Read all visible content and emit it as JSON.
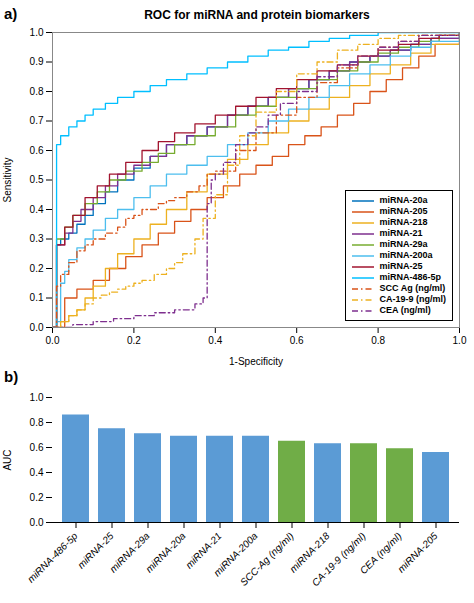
{
  "chart_data": [
    {
      "type": "step",
      "title": "ROC for miRNA and protein biomarkers",
      "xlabel": "1-Specificity",
      "ylabel": "Sensitivity",
      "annotations": [
        "a)"
      ],
      "xlim": [
        0,
        1
      ],
      "ylim": [
        0,
        1
      ],
      "xticks": [
        {
          "value": 0,
          "label": "0.0"
        },
        0.2,
        0.4,
        0.6,
        0.8,
        {
          "value": 1,
          "label": "1.0"
        }
      ],
      "yticks": [
        {
          "value": 0,
          "label": "0.0"
        },
        0.1,
        0.2,
        0.3,
        0.4,
        0.5,
        0.6,
        0.7,
        0.8,
        0.9,
        {
          "value": 1,
          "label": "1.0"
        }
      ],
      "grid": false,
      "legend": "lower right",
      "series": [
        {
          "name": "miRNA-20a",
          "color": "#0072BD",
          "line_style": "solid",
          "x": [
            0,
            0.01,
            0.02,
            0.04,
            0.06,
            0.08,
            0.1,
            0.13,
            0.16,
            0.2,
            0.24,
            0.28,
            0.33,
            0.38,
            0.43,
            0.48,
            0.53,
            0.58,
            0.63,
            0.68,
            0.73,
            0.78,
            0.83,
            0.88,
            0.93,
            1.0
          ],
          "values": [
            0,
            0.28,
            0.3,
            0.32,
            0.35,
            0.38,
            0.42,
            0.46,
            0.5,
            0.54,
            0.58,
            0.62,
            0.65,
            0.68,
            0.72,
            0.75,
            0.78,
            0.81,
            0.84,
            0.87,
            0.9,
            0.92,
            0.94,
            0.96,
            0.98,
            1.0
          ]
        },
        {
          "name": "miRNA-205",
          "color": "#D95319",
          "line_style": "solid",
          "x": [
            0,
            0.03,
            0.06,
            0.1,
            0.14,
            0.18,
            0.22,
            0.26,
            0.3,
            0.34,
            0.38,
            0.42,
            0.46,
            0.5,
            0.54,
            0.58,
            0.62,
            0.66,
            0.7,
            0.74,
            0.78,
            0.82,
            0.86,
            0.9,
            0.94,
            1.0
          ],
          "values": [
            0,
            0.1,
            0.13,
            0.16,
            0.2,
            0.24,
            0.28,
            0.32,
            0.36,
            0.4,
            0.44,
            0.48,
            0.52,
            0.55,
            0.58,
            0.62,
            0.65,
            0.68,
            0.72,
            0.76,
            0.8,
            0.84,
            0.88,
            0.92,
            0.96,
            1.0
          ]
        },
        {
          "name": "miRNA-218",
          "color": "#EDB120",
          "line_style": "solid",
          "x": [
            0,
            0.02,
            0.04,
            0.06,
            0.08,
            0.1,
            0.13,
            0.16,
            0.2,
            0.24,
            0.28,
            0.33,
            0.38,
            0.43,
            0.48,
            0.53,
            0.58,
            0.63,
            0.68,
            0.73,
            0.78,
            0.83,
            0.88,
            0.93,
            1.0
          ],
          "values": [
            0,
            0.02,
            0.04,
            0.06,
            0.1,
            0.14,
            0.2,
            0.25,
            0.3,
            0.35,
            0.4,
            0.46,
            0.52,
            0.57,
            0.62,
            0.66,
            0.7,
            0.74,
            0.78,
            0.82,
            0.86,
            0.89,
            0.93,
            0.96,
            1.0
          ]
        },
        {
          "name": "miRNA-21",
          "color": "#7E2F8E",
          "line_style": "solid",
          "x": [
            0,
            0.01,
            0.03,
            0.05,
            0.07,
            0.1,
            0.13,
            0.16,
            0.2,
            0.24,
            0.28,
            0.33,
            0.38,
            0.43,
            0.48,
            0.53,
            0.58,
            0.63,
            0.68,
            0.73,
            0.78,
            0.83,
            0.88,
            0.93,
            1.0
          ],
          "values": [
            0,
            0.28,
            0.32,
            0.36,
            0.4,
            0.44,
            0.48,
            0.52,
            0.55,
            0.58,
            0.62,
            0.65,
            0.68,
            0.72,
            0.75,
            0.78,
            0.81,
            0.84,
            0.87,
            0.9,
            0.92,
            0.94,
            0.96,
            0.98,
            1.0
          ]
        },
        {
          "name": "miRNA-29a",
          "color": "#77AC30",
          "line_style": "solid",
          "x": [
            0,
            0.01,
            0.03,
            0.05,
            0.08,
            0.11,
            0.14,
            0.18,
            0.22,
            0.26,
            0.3,
            0.35,
            0.4,
            0.45,
            0.5,
            0.55,
            0.6,
            0.65,
            0.7,
            0.75,
            0.8,
            0.85,
            0.9,
            0.95,
            1.0
          ],
          "values": [
            0,
            0.3,
            0.34,
            0.38,
            0.42,
            0.46,
            0.5,
            0.53,
            0.56,
            0.59,
            0.62,
            0.65,
            0.68,
            0.72,
            0.75,
            0.78,
            0.81,
            0.84,
            0.87,
            0.9,
            0.93,
            0.95,
            0.97,
            0.99,
            1.0
          ]
        },
        {
          "name": "miRNA-200a",
          "color": "#4DBEEE",
          "line_style": "solid",
          "x": [
            0,
            0.01,
            0.02,
            0.03,
            0.04,
            0.06,
            0.08,
            0.1,
            0.13,
            0.16,
            0.2,
            0.24,
            0.28,
            0.33,
            0.38,
            0.43,
            0.48,
            0.53,
            0.58,
            0.63,
            0.68,
            0.73,
            0.78,
            0.83,
            0.88,
            0.93,
            1.0
          ],
          "values": [
            0,
            0.02,
            0.15,
            0.19,
            0.23,
            0.27,
            0.3,
            0.33,
            0.37,
            0.4,
            0.44,
            0.48,
            0.52,
            0.55,
            0.58,
            0.62,
            0.66,
            0.7,
            0.74,
            0.78,
            0.82,
            0.86,
            0.89,
            0.92,
            0.95,
            0.97,
            1.0
          ]
        },
        {
          "name": "miRNA-25",
          "color": "#A2142F",
          "line_style": "solid",
          "x": [
            0,
            0.01,
            0.03,
            0.05,
            0.08,
            0.11,
            0.14,
            0.18,
            0.22,
            0.26,
            0.3,
            0.35,
            0.4,
            0.45,
            0.5,
            0.55,
            0.6,
            0.65,
            0.7,
            0.75,
            0.8,
            0.85,
            0.9,
            0.95,
            1.0
          ],
          "values": [
            0,
            0.28,
            0.34,
            0.38,
            0.44,
            0.48,
            0.52,
            0.56,
            0.6,
            0.63,
            0.66,
            0.69,
            0.72,
            0.75,
            0.78,
            0.81,
            0.84,
            0.87,
            0.89,
            0.92,
            0.94,
            0.96,
            0.98,
            0.99,
            1.0
          ]
        },
        {
          "name": "miRNA-486-5p",
          "color": "#00BFFF",
          "line_style": "solid",
          "x": [
            0,
            0.01,
            0.02,
            0.04,
            0.06,
            0.08,
            0.1,
            0.13,
            0.16,
            0.2,
            0.24,
            0.28,
            0.33,
            0.38,
            0.43,
            0.48,
            0.53,
            0.58,
            0.63,
            0.68,
            0.73,
            0.8,
            1.0
          ],
          "values": [
            0,
            0.62,
            0.65,
            0.68,
            0.7,
            0.72,
            0.74,
            0.76,
            0.78,
            0.8,
            0.82,
            0.84,
            0.86,
            0.88,
            0.9,
            0.92,
            0.94,
            0.95,
            0.97,
            0.98,
            0.99,
            1.0,
            1.0
          ]
        },
        {
          "name": "SCC Ag (ng/ml)",
          "color": "#D95319",
          "line_style": "dashdot",
          "x": [
            0,
            0.01,
            0.02,
            0.04,
            0.06,
            0.08,
            0.1,
            0.13,
            0.16,
            0.18,
            0.2,
            0.22,
            0.24,
            0.26,
            0.28,
            0.3,
            0.33,
            0.36,
            0.38,
            0.4,
            0.45,
            0.5,
            0.55,
            0.6,
            0.65,
            0.7,
            0.75,
            0.8,
            0.85,
            0.9,
            1.0
          ],
          "values": [
            0,
            0.14,
            0.18,
            0.22,
            0.26,
            0.28,
            0.3,
            0.32,
            0.34,
            0.37,
            0.38,
            0.4,
            0.4,
            0.42,
            0.43,
            0.44,
            0.46,
            0.48,
            0.52,
            0.53,
            0.6,
            0.66,
            0.72,
            0.78,
            0.83,
            0.88,
            0.92,
            0.95,
            0.97,
            0.99,
            1.0
          ]
        },
        {
          "name": "CA-19-9 (ng/ml)",
          "color": "#EDB120",
          "line_style": "dashdot",
          "x": [
            0,
            0.02,
            0.04,
            0.06,
            0.08,
            0.1,
            0.12,
            0.14,
            0.16,
            0.18,
            0.2,
            0.22,
            0.25,
            0.28,
            0.3,
            0.32,
            0.35,
            0.37,
            0.4,
            0.43,
            0.46,
            0.5,
            0.55,
            0.6,
            0.65,
            0.7,
            0.75,
            0.8,
            0.85,
            1.0
          ],
          "values": [
            0,
            0.02,
            0.04,
            0.06,
            0.08,
            0.1,
            0.11,
            0.12,
            0.13,
            0.14,
            0.15,
            0.16,
            0.18,
            0.2,
            0.22,
            0.25,
            0.3,
            0.37,
            0.45,
            0.55,
            0.65,
            0.73,
            0.8,
            0.86,
            0.9,
            0.94,
            0.96,
            0.98,
            0.99,
            1.0
          ]
        },
        {
          "name": "CEA (ng/ml)",
          "color": "#7E2F8E",
          "line_style": "dashdot",
          "x": [
            0,
            0.05,
            0.1,
            0.15,
            0.2,
            0.25,
            0.3,
            0.35,
            0.37,
            0.38,
            0.39,
            0.4,
            0.42,
            0.45,
            0.48,
            0.5,
            0.53,
            0.56,
            0.6,
            0.65,
            0.7,
            0.75,
            0.8,
            0.85,
            0.9,
            1.0
          ],
          "values": [
            0,
            0.01,
            0.02,
            0.03,
            0.04,
            0.05,
            0.06,
            0.08,
            0.1,
            0.42,
            0.5,
            0.52,
            0.56,
            0.62,
            0.66,
            0.68,
            0.72,
            0.76,
            0.8,
            0.85,
            0.89,
            0.92,
            0.95,
            0.97,
            0.99,
            1.0
          ]
        }
      ]
    },
    {
      "type": "bar",
      "ylabel": "AUC",
      "annotations": [
        "b)"
      ],
      "categories": [
        "miRNA-486-5p",
        "miRNA-25",
        "miRNA-29a",
        "miRNA-20a",
        "miRNA-21",
        "miRNA-200a",
        "SCC-Ag (ng/ml)",
        "miRNA-218",
        "CA-19-9 (ng/ml)",
        "CEA (ng/ml)",
        "miRNA-205"
      ],
      "values": [
        0.86,
        0.75,
        0.71,
        0.69,
        0.69,
        0.69,
        0.65,
        0.63,
        0.63,
        0.59,
        0.56
      ],
      "colors": [
        "#5B9BD5",
        "#5B9BD5",
        "#5B9BD5",
        "#5B9BD5",
        "#5B9BD5",
        "#5B9BD5",
        "#70AD47",
        "#5B9BD5",
        "#70AD47",
        "#70AD47",
        "#5B9BD5"
      ],
      "ylim": [
        0,
        1.0
      ],
      "yticks": [
        {
          "value": 0,
          "label": "0.0"
        },
        0.2,
        0.4,
        0.6,
        0.8,
        {
          "value": 1.0,
          "label": "1.0"
        }
      ],
      "grid": false
    }
  ]
}
